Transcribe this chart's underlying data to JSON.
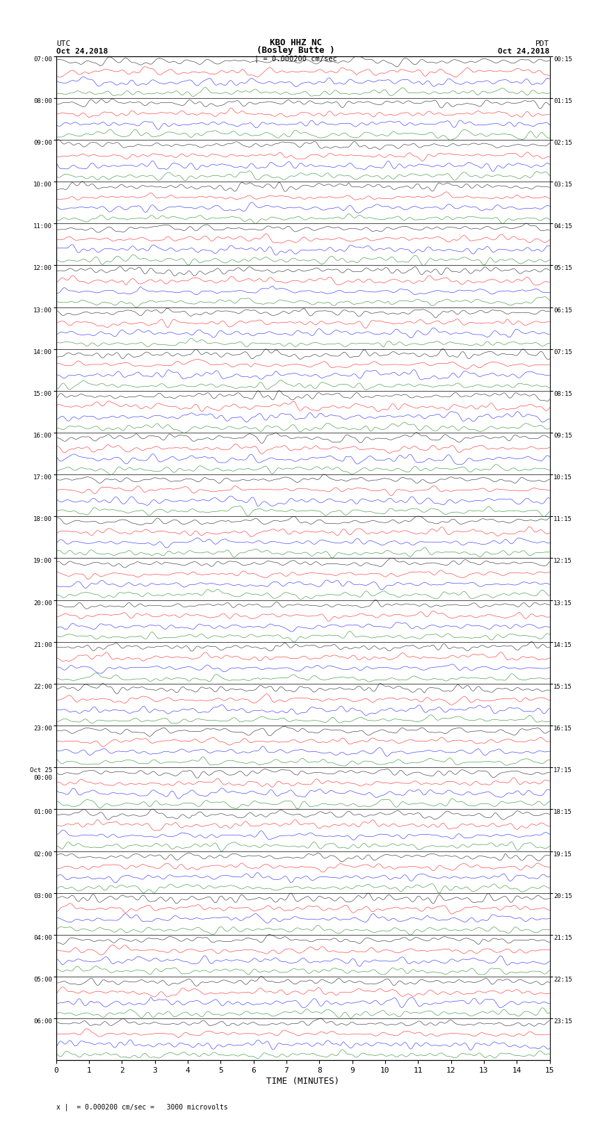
{
  "title_line1": "KBO HHZ NC",
  "title_line2": "(Bosley Butte )",
  "title_line3": "| = 0.000200 cm/sec",
  "left_header_line1": "UTC",
  "left_header_line2": "Oct 24,2018",
  "right_header_line1": "PDT",
  "right_header_line2": "Oct 24,2018",
  "xlabel": "TIME (MINUTES)",
  "footer": "x |  = 0.000200 cm/sec =   3000 microvolts",
  "utc_labels": [
    "07:00",
    "08:00",
    "09:00",
    "10:00",
    "11:00",
    "12:00",
    "13:00",
    "14:00",
    "15:00",
    "16:00",
    "17:00",
    "18:00",
    "19:00",
    "20:00",
    "21:00",
    "22:00",
    "23:00",
    "Oct 25\n00:00",
    "01:00",
    "02:00",
    "03:00",
    "04:00",
    "05:00",
    "06:00"
  ],
  "pdt_labels": [
    "00:15",
    "01:15",
    "02:15",
    "03:15",
    "04:15",
    "05:15",
    "06:15",
    "07:15",
    "08:15",
    "09:15",
    "10:15",
    "11:15",
    "12:15",
    "13:15",
    "14:15",
    "15:15",
    "16:15",
    "17:15",
    "18:15",
    "19:15",
    "20:15",
    "21:15",
    "22:15",
    "23:15"
  ],
  "n_rows": 24,
  "n_traces_per_row": 4,
  "colors": [
    "black",
    "red",
    "blue",
    "green"
  ],
  "time_min": 0,
  "time_max": 15,
  "xticks": [
    0,
    1,
    2,
    3,
    4,
    5,
    6,
    7,
    8,
    9,
    10,
    11,
    12,
    13,
    14,
    15
  ],
  "background_color": "white",
  "noise_seed": 42,
  "fig_width": 8.5,
  "fig_height": 16.13,
  "dpi": 100
}
